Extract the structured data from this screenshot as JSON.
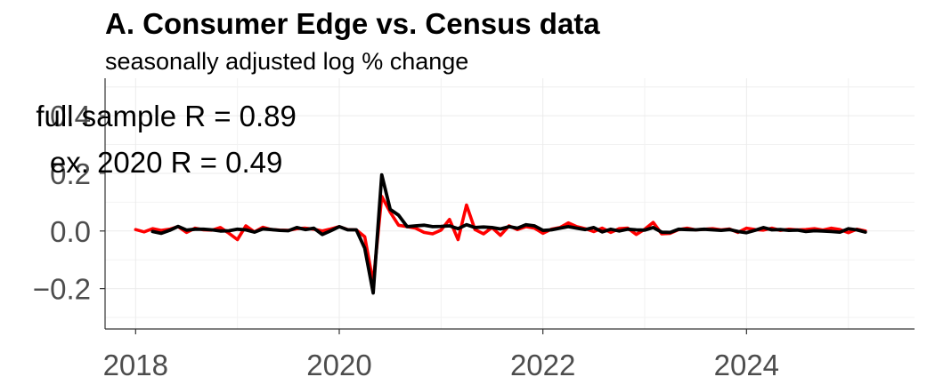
{
  "chart_data": {
    "type": "line",
    "title": "A. Consumer Edge vs. Census data",
    "subtitle": "seasonally adjusted log % change",
    "xlabel": "",
    "ylabel": "",
    "xlim": [
      2017.7,
      2025.65
    ],
    "ylim": [
      -0.34,
      0.53
    ],
    "x_ticks": [
      2018,
      2020,
      2022,
      2024
    ],
    "x_tick_labels": [
      "2018",
      "2020",
      "2022",
      "2024"
    ],
    "y_ticks": [
      -0.2,
      0.0,
      0.2,
      0.4
    ],
    "y_tick_labels": [
      "−0.2",
      "0.0",
      "0.2",
      "0.4"
    ],
    "grid": true,
    "legend": "none",
    "annotations": [
      {
        "text": "full sample R = 0.89",
        "x": 2018.3,
        "y": 0.4
      },
      {
        "text": "ex. 2020 R = 0.49",
        "x": 2018.3,
        "y": 0.24
      }
    ],
    "series": [
      {
        "color": "#ff0000",
        "x": [
          2018.0,
          2018.083,
          2018.167,
          2018.25,
          2018.333,
          2018.417,
          2018.5,
          2018.583,
          2018.667,
          2018.75,
          2018.833,
          2018.917,
          2019.0,
          2019.083,
          2019.167,
          2019.25,
          2019.333,
          2019.417,
          2019.5,
          2019.583,
          2019.667,
          2019.75,
          2019.833,
          2019.917,
          2020.0,
          2020.083,
          2020.167,
          2020.25,
          2020.333,
          2020.417,
          2020.5,
          2020.583,
          2020.667,
          2020.75,
          2020.833,
          2020.917,
          2021.0,
          2021.083,
          2021.167,
          2021.25,
          2021.333,
          2021.417,
          2021.5,
          2021.583,
          2021.667,
          2021.75,
          2021.833,
          2021.917,
          2022.0,
          2022.083,
          2022.167,
          2022.25,
          2022.333,
          2022.417,
          2022.5,
          2022.583,
          2022.667,
          2022.75,
          2022.833,
          2022.917,
          2023.0,
          2023.083,
          2023.167,
          2023.25,
          2023.333,
          2023.417,
          2023.5,
          2023.583,
          2023.667,
          2023.75,
          2023.833,
          2023.917,
          2024.0,
          2024.083,
          2024.167,
          2024.25,
          2024.333,
          2024.417,
          2024.5,
          2024.583,
          2024.667,
          2024.75,
          2024.833,
          2024.917,
          2025.0,
          2025.083,
          2025.167
        ],
        "values": [
          0.005,
          -0.003,
          0.008,
          0.002,
          0.006,
          0.015,
          -0.005,
          0.01,
          0.004,
          0.003,
          0.012,
          -0.008,
          -0.03,
          0.018,
          -0.003,
          0.013,
          0.005,
          0.003,
          0.002,
          0.008,
          0.01,
          0.006,
          0.0,
          0.007,
          0.015,
          0.005,
          0.004,
          -0.02,
          -0.18,
          0.12,
          0.065,
          0.02,
          0.015,
          0.01,
          -0.005,
          -0.01,
          0.003,
          0.04,
          -0.03,
          0.09,
          0.005,
          -0.01,
          0.012,
          -0.015,
          0.018,
          0.005,
          0.015,
          0.01,
          -0.008,
          0.006,
          0.012,
          0.028,
          0.015,
          0.008,
          -0.002,
          0.01,
          -0.005,
          0.008,
          0.01,
          -0.012,
          0.006,
          0.03,
          -0.01,
          -0.008,
          0.005,
          0.01,
          0.004,
          0.006,
          0.008,
          0.004,
          0.007,
          -0.005,
          0.01,
          0.005,
          0.003,
          0.01,
          0.002,
          0.006,
          0.004,
          0.005,
          0.008,
          0.003,
          0.01,
          0.005,
          -0.006,
          0.006,
          0.0
        ]
      },
      {
        "color": "#000000",
        "x": [
          2018.0,
          2018.083,
          2018.167,
          2018.25,
          2018.333,
          2018.417,
          2018.5,
          2018.583,
          2018.667,
          2018.75,
          2018.833,
          2018.917,
          2019.0,
          2019.083,
          2019.167,
          2019.25,
          2019.333,
          2019.417,
          2019.5,
          2019.583,
          2019.667,
          2019.75,
          2019.833,
          2019.917,
          2020.0,
          2020.083,
          2020.167,
          2020.25,
          2020.333,
          2020.417,
          2020.5,
          2020.583,
          2020.667,
          2020.75,
          2020.833,
          2020.917,
          2021.0,
          2021.083,
          2021.167,
          2021.25,
          2021.333,
          2021.417,
          2021.5,
          2021.583,
          2021.667,
          2021.75,
          2021.833,
          2021.917,
          2022.0,
          2022.083,
          2022.167,
          2022.25,
          2022.333,
          2022.417,
          2022.5,
          2022.583,
          2022.667,
          2022.75,
          2022.833,
          2022.917,
          2023.0,
          2023.083,
          2023.167,
          2023.25,
          2023.333,
          2023.417,
          2023.5,
          2023.583,
          2023.667,
          2023.75,
          2023.833,
          2023.917,
          2024.0,
          2024.083,
          2024.167,
          2024.25,
          2024.333,
          2024.417,
          2024.5,
          2024.583,
          2024.667,
          2024.75,
          2024.833,
          2024.917,
          2025.0,
          2025.083,
          2025.167
        ],
        "values": [
          null,
          null,
          -0.002,
          -0.008,
          0.002,
          0.016,
          0.003,
          0.006,
          0.006,
          0.004,
          0.0,
          0.001,
          0.006,
          0.004,
          -0.004,
          0.007,
          0.005,
          0.002,
          0.001,
          0.012,
          0.005,
          0.01,
          -0.012,
          0.001,
          0.015,
          0.004,
          0.004,
          -0.06,
          -0.215,
          0.195,
          0.075,
          0.055,
          0.015,
          0.018,
          0.02,
          0.015,
          0.016,
          0.018,
          0.008,
          0.022,
          0.012,
          0.014,
          0.012,
          0.007,
          0.015,
          0.01,
          0.022,
          0.018,
          0.002,
          0.004,
          0.01,
          0.015,
          0.01,
          0.005,
          0.012,
          -0.003,
          0.006,
          0.0,
          0.006,
          0.004,
          0.003,
          0.012,
          -0.004,
          -0.005,
          0.006,
          0.005,
          0.004,
          0.006,
          0.004,
          0.002,
          0.005,
          -0.002,
          -0.006,
          0.002,
          0.012,
          0.004,
          0.005,
          0.002,
          0.003,
          -0.002,
          0.001,
          0.0,
          -0.002,
          -0.004,
          0.008,
          0.004,
          -0.004
        ]
      }
    ]
  }
}
